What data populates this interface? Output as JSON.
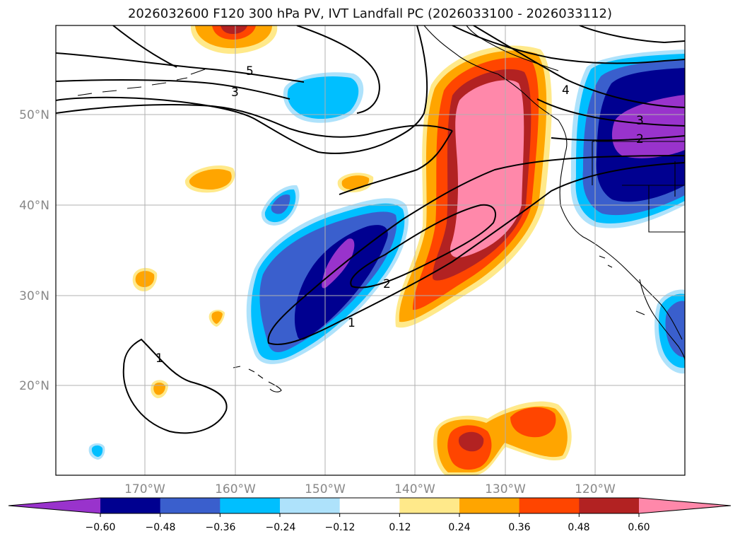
{
  "title": "2026032600 F120 300 hPa PV, IVT Landfall PC (2026033100 - 2026033112)",
  "lat_labels": [
    "50°N",
    "40°N",
    "30°N",
    "20°N"
  ],
  "lon_labels": [
    "170°W",
    "160°W",
    "150°W",
    "140°W",
    "130°W",
    "120°W"
  ],
  "contour_labels": [
    "5",
    "3",
    "4",
    "3",
    "2",
    "2",
    "1",
    "1"
  ],
  "colorbar": {
    "tick_labels": [
      "−0.60",
      "−0.48",
      "−0.36",
      "−0.24",
      "−0.12",
      "0.12",
      "0.24",
      "0.36",
      "0.48",
      "0.60"
    ],
    "colors": [
      "#9933cc",
      "#000090",
      "#3a5fcd",
      "#00bfff",
      "#aee2fb",
      "#ffffff",
      "#ffe98a",
      "#ffa500",
      "#ff4500",
      "#b22222",
      "#ff88aa"
    ]
  }
}
